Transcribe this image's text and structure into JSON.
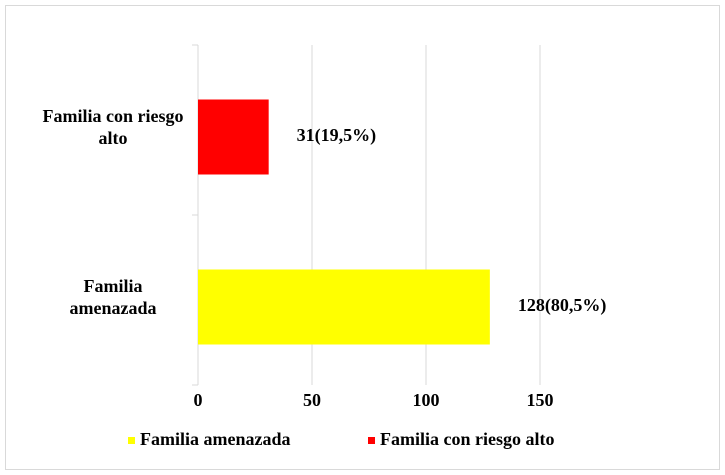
{
  "chart_data": {
    "type": "hbar",
    "categories": [
      "Familia con riesgo alto",
      "Familia amenazada"
    ],
    "values": [
      31,
      128
    ],
    "value_labels": [
      "31(19,5%)",
      "128(80,5%)"
    ],
    "colors": [
      "#ff0000",
      "#ffff00"
    ],
    "xlim": [
      0,
      200
    ],
    "xticks": [
      0,
      50,
      100,
      150
    ],
    "grid": true,
    "legend": "bottom"
  }
}
